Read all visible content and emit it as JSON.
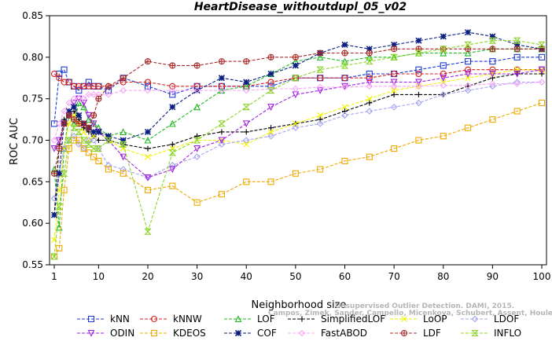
{
  "chart_data": {
    "type": "line",
    "title": "HeartDisease_withoutdupl_05_v02",
    "xlabel": "Neighborhood size",
    "ylabel": "ROC AUC",
    "xlim": [
      1,
      100
    ],
    "ylim": [
      0.55,
      0.85
    ],
    "x_ticks": [
      1,
      10,
      20,
      30,
      40,
      50,
      60,
      70,
      80,
      90,
      100
    ],
    "y_ticks": [
      0.55,
      0.6,
      0.65,
      0.7,
      0.75,
      0.8,
      0.85
    ],
    "grid": false,
    "legend_position": "bottom",
    "watermark": [
      "Unsupervised Outlier Detection. DAMI, 2015.",
      "Campos, Zimek, Sander, Campello, Micenkova, Schubert, Assent, Houle"
    ],
    "x": [
      1,
      2,
      3,
      4,
      5,
      6,
      7,
      8,
      9,
      10,
      12,
      15,
      20,
      25,
      30,
      35,
      40,
      45,
      50,
      55,
      60,
      65,
      70,
      75,
      80,
      85,
      90,
      95,
      100
    ],
    "series": [
      {
        "name": "kNN",
        "color": "#1f3ad6",
        "marker": "square",
        "values": [
          0.72,
          0.78,
          0.785,
          0.77,
          0.765,
          0.76,
          0.765,
          0.77,
          0.765,
          0.765,
          0.76,
          0.775,
          0.765,
          0.755,
          0.765,
          0.765,
          0.765,
          0.765,
          0.775,
          0.775,
          0.775,
          0.78,
          0.78,
          0.785,
          0.79,
          0.795,
          0.795,
          0.8,
          0.8
        ]
      },
      {
        "name": "kNNW",
        "color": "#d62020",
        "marker": "circle",
        "values": [
          0.78,
          0.775,
          0.77,
          0.77,
          0.765,
          0.765,
          0.765,
          0.765,
          0.765,
          0.765,
          0.765,
          0.77,
          0.77,
          0.765,
          0.765,
          0.765,
          0.765,
          0.77,
          0.775,
          0.775,
          0.775,
          0.775,
          0.78,
          0.78,
          0.78,
          0.785,
          0.785,
          0.785,
          0.785
        ]
      },
      {
        "name": "LOF",
        "color": "#22b822",
        "marker": "triangle-up",
        "values": [
          0.665,
          0.595,
          0.69,
          0.73,
          0.72,
          0.745,
          0.74,
          0.725,
          0.72,
          0.715,
          0.705,
          0.71,
          0.7,
          0.72,
          0.74,
          0.76,
          0.765,
          0.78,
          0.795,
          0.8,
          0.795,
          0.8,
          0.8,
          0.805,
          0.805,
          0.805,
          0.81,
          0.81,
          0.81
        ]
      },
      {
        "name": "SimplifiedLOF",
        "color": "#000000",
        "marker": "plus",
        "values": [
          0.61,
          0.695,
          0.725,
          0.73,
          0.735,
          0.725,
          0.715,
          0.71,
          0.705,
          0.7,
          0.7,
          0.695,
          0.69,
          0.695,
          0.705,
          0.71,
          0.71,
          0.715,
          0.72,
          0.725,
          0.735,
          0.745,
          0.755,
          0.755,
          0.755,
          0.765,
          0.775,
          0.78,
          0.78
        ]
      },
      {
        "name": "LoOP",
        "color": "#f2f200",
        "marker": "x",
        "values": [
          0.58,
          0.64,
          0.69,
          0.72,
          0.73,
          0.72,
          0.71,
          0.7,
          0.705,
          0.71,
          0.7,
          0.69,
          0.68,
          0.69,
          0.7,
          0.7,
          0.695,
          0.71,
          0.72,
          0.73,
          0.74,
          0.75,
          0.76,
          0.765,
          0.77,
          0.775,
          0.78,
          0.785,
          0.785
        ]
      },
      {
        "name": "LDOF",
        "color": "#a4a4f0",
        "marker": "diamond",
        "values": [
          0.63,
          0.66,
          0.69,
          0.7,
          0.705,
          0.695,
          0.69,
          0.7,
          0.7,
          0.69,
          0.67,
          0.665,
          0.655,
          0.67,
          0.68,
          0.695,
          0.7,
          0.705,
          0.715,
          0.72,
          0.73,
          0.735,
          0.74,
          0.745,
          0.755,
          0.76,
          0.765,
          0.77,
          0.77
        ]
      },
      {
        "name": "ODIN",
        "color": "#a020e0",
        "marker": "triangle-down",
        "values": [
          0.69,
          0.7,
          0.72,
          0.73,
          0.745,
          0.75,
          0.745,
          0.73,
          0.72,
          0.71,
          0.7,
          0.68,
          0.655,
          0.665,
          0.69,
          0.7,
          0.72,
          0.74,
          0.755,
          0.76,
          0.765,
          0.77,
          0.77,
          0.77,
          0.775,
          0.78,
          0.78,
          0.78,
          0.785
        ]
      },
      {
        "name": "KDEOS",
        "color": "#f0a800",
        "marker": "square",
        "values": [
          0.56,
          0.57,
          0.64,
          0.69,
          0.7,
          0.7,
          0.69,
          0.685,
          0.68,
          0.675,
          0.665,
          0.66,
          0.64,
          0.645,
          0.625,
          0.635,
          0.65,
          0.65,
          0.66,
          0.665,
          0.675,
          0.68,
          0.69,
          0.7,
          0.705,
          0.715,
          0.725,
          0.735,
          0.745
        ]
      },
      {
        "name": "COF",
        "color": "#0a1f80",
        "marker": "star",
        "values": [
          0.61,
          0.66,
          0.72,
          0.735,
          0.74,
          0.73,
          0.72,
          0.715,
          0.71,
          0.71,
          0.705,
          0.7,
          0.71,
          0.74,
          0.76,
          0.775,
          0.77,
          0.78,
          0.79,
          0.805,
          0.815,
          0.81,
          0.815,
          0.82,
          0.825,
          0.83,
          0.825,
          0.815,
          0.81
        ]
      },
      {
        "name": "FastABOD",
        "color": "#f5a8f5",
        "marker": "diamond",
        "values": [
          0.7,
          0.72,
          0.735,
          0.745,
          0.75,
          0.75,
          0.75,
          0.755,
          0.755,
          0.755,
          0.755,
          0.76,
          0.76,
          0.76,
          0.76,
          0.76,
          0.76,
          0.762,
          0.762,
          0.764,
          0.764,
          0.765,
          0.765,
          0.765,
          0.766,
          0.766,
          0.768,
          0.768,
          0.77
        ]
      },
      {
        "name": "LDF",
        "color": "#a82828",
        "marker": "circle-plus",
        "values": [
          0.66,
          0.69,
          0.72,
          0.73,
          0.725,
          0.72,
          0.72,
          0.715,
          0.73,
          0.75,
          0.765,
          0.775,
          0.795,
          0.79,
          0.79,
          0.795,
          0.795,
          0.8,
          0.8,
          0.805,
          0.805,
          0.805,
          0.81,
          0.81,
          0.81,
          0.81,
          0.81,
          0.81,
          0.81
        ]
      },
      {
        "name": "INFLO",
        "color": "#8cd42a",
        "marker": "hourglass",
        "values": [
          0.56,
          0.62,
          0.66,
          0.7,
          0.715,
          0.71,
          0.7,
          0.695,
          0.69,
          0.69,
          0.7,
          0.695,
          0.59,
          0.685,
          0.7,
          0.72,
          0.74,
          0.76,
          0.775,
          0.785,
          0.79,
          0.795,
          0.8,
          0.805,
          0.81,
          0.815,
          0.82,
          0.82,
          0.815
        ]
      }
    ]
  }
}
